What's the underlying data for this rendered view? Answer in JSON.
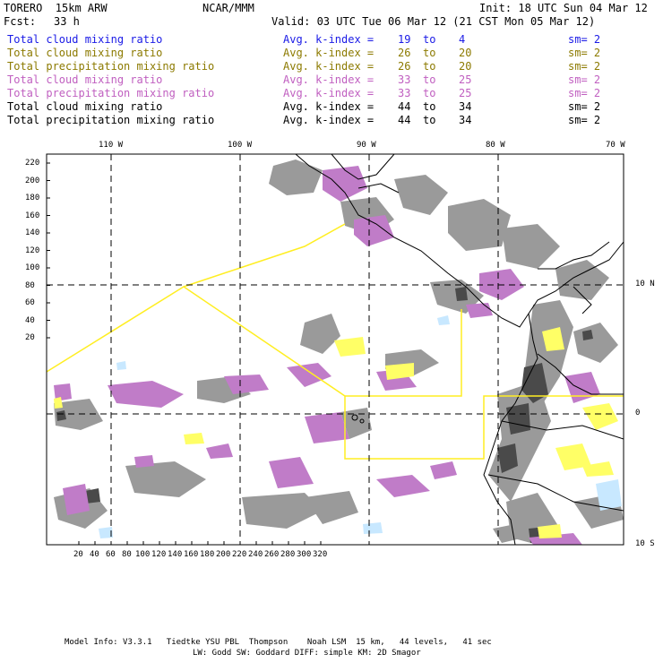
{
  "header": {
    "model": "TORERO  15km ARW",
    "center": "NCAR/MMM",
    "init": "Init: 18 UTC Sun 04 Mar 12",
    "fcst_label": "Fcst:",
    "fcst_value": "33 h",
    "valid": "Valid: 03 UTC Tue 06 Mar 12 (21 CST Mon 05 Mar 12)"
  },
  "legend": [
    {
      "field": "Total cloud mixing ratio",
      "k": "Avg. k-index =",
      "v1": "19",
      "to": "to",
      "v2": "4",
      "sm": "sm= 2",
      "color": "#1a1ae6"
    },
    {
      "field": "Total cloud mixing ratio",
      "k": "Avg. k-index =",
      "v1": "26",
      "to": "to",
      "v2": "20",
      "sm": "sm= 2",
      "color": "#8c7a00"
    },
    {
      "field": "Total precipitation mixing ratio",
      "k": "Avg. k-index =",
      "v1": "26",
      "to": "to",
      "v2": "20",
      "sm": "sm= 2",
      "color": "#8c7a00"
    },
    {
      "field": "Total cloud mixing ratio",
      "k": "Avg. k-index =",
      "v1": "33",
      "to": "to",
      "v2": "25",
      "sm": "sm= 2",
      "color": "#c05fc0"
    },
    {
      "field": "Total precipitation mixing ratio",
      "k": "Avg. k-index =",
      "v1": "33",
      "to": "to",
      "v2": "25",
      "sm": "sm= 2",
      "color": "#c05fc0"
    },
    {
      "field": "Total cloud mixing ratio",
      "k": "Avg. k-index =",
      "v1": "44",
      "to": "to",
      "v2": "34",
      "sm": "sm= 2",
      "color": "#000000"
    },
    {
      "field": "Total precipitation mixing ratio",
      "k": "Avg. k-index =",
      "v1": "44",
      "to": "to",
      "v2": "34",
      "sm": "sm= 2",
      "color": "#000000"
    }
  ],
  "map": {
    "lon_labels": [
      "110 W",
      "100 W",
      "90 W",
      "80 W",
      "70 W"
    ],
    "lat_labels": [
      "10 N",
      "0",
      "10 S"
    ],
    "grid_y_labels": [
      "220",
      "200",
      "180",
      "160",
      "140",
      "120",
      "100",
      "80",
      "60",
      "40",
      "20"
    ],
    "grid_x_labels": [
      "20",
      "40",
      "60",
      "80",
      "100",
      "120",
      "140",
      "160",
      "180",
      "200",
      "220",
      "240",
      "260",
      "280",
      "300",
      "320"
    ],
    "colors": {
      "cloud_gray": "#9a9a9a",
      "dark_gray": "#555555",
      "magenta": "#c07cc8",
      "yellow": "#ffff66",
      "light_blue": "#c8e8ff",
      "box_yellow": "#ffee22"
    }
  },
  "footer": {
    "line1": "Model Info: V3.3.1   Tiedtke YSU PBL  Thompson    Noah LSM  15 km,   44 levels,   41 sec",
    "line2": "LW: Godd SW: Goddard DIFF: simple KM: 2D Smagor"
  }
}
